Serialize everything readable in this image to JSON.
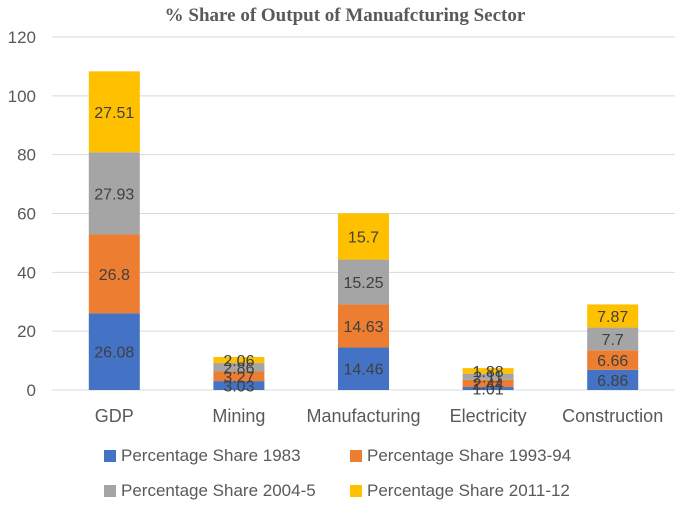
{
  "chart_data": {
    "type": "bar",
    "stacked": true,
    "title": "% Share of Output of Manuafcturing Sector",
    "xlabel": "",
    "ylabel": "",
    "categories": [
      "GDP",
      "Mining",
      "Manufacturing",
      "Electricity",
      "Construction"
    ],
    "series": [
      {
        "name": "Percentage Share 1983",
        "color": "#4472C4",
        "values": [
          26.08,
          3.03,
          14.46,
          1.01,
          6.86
        ]
      },
      {
        "name": "Percentage Share 1993-94",
        "color": "#ED7D31",
        "values": [
          26.8,
          3.27,
          14.63,
          2.44,
          6.66
        ]
      },
      {
        "name": "Percentage Share 2004-5",
        "color": "#A5A5A5",
        "values": [
          27.93,
          2.86,
          15.25,
          2.11,
          7.7
        ]
      },
      {
        "name": "Percentage Share 2011-12",
        "color": "#FFC000",
        "values": [
          27.51,
          2.06,
          15.7,
          1.88,
          7.87
        ]
      }
    ],
    "ylim": [
      0,
      120
    ],
    "yticks": [
      0,
      20,
      40,
      60,
      80,
      100,
      120
    ],
    "grid": true,
    "legend_position": "bottom"
  }
}
